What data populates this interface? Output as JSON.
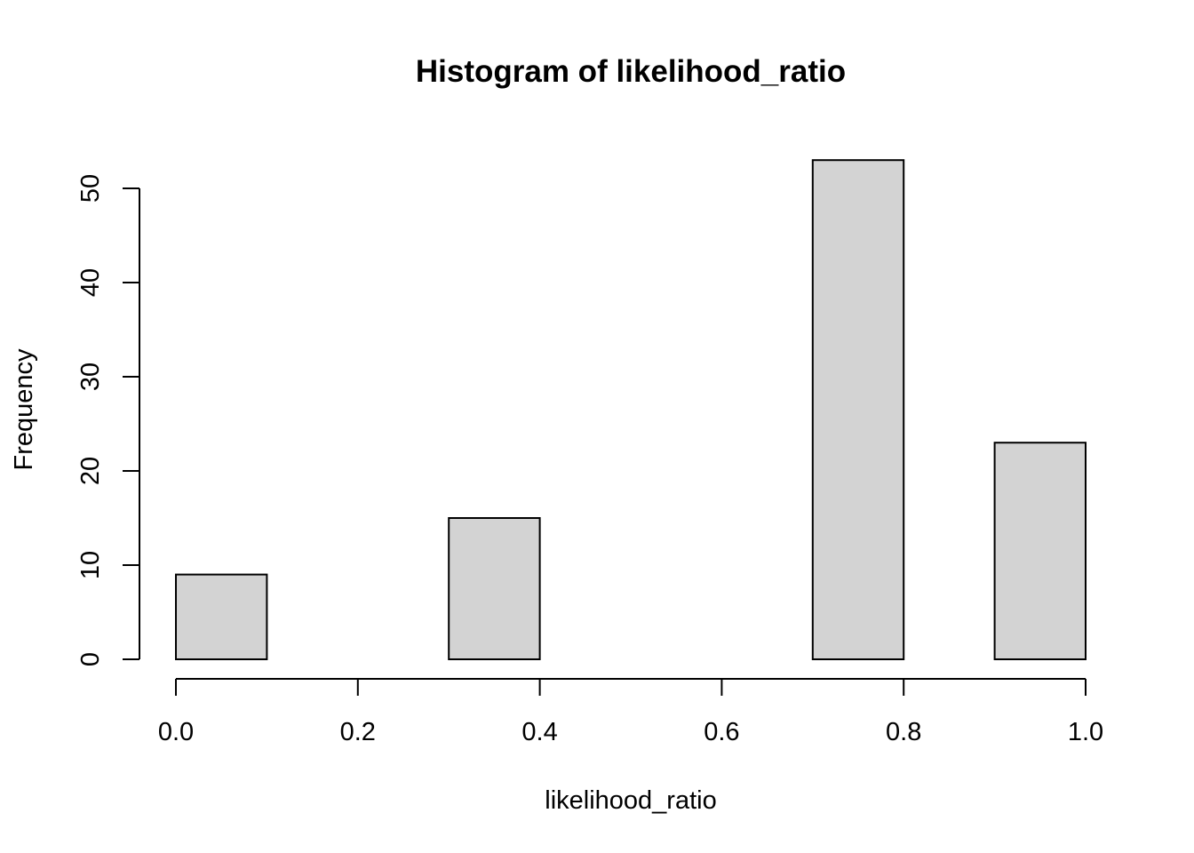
{
  "chart_data": {
    "type": "bar",
    "title": "Histogram of likelihood_ratio",
    "xlabel": "likelihood_ratio",
    "ylabel": "Frequency",
    "bins": [
      {
        "from": 0.0,
        "to": 0.1,
        "count": 9
      },
      {
        "from": 0.1,
        "to": 0.2,
        "count": 0
      },
      {
        "from": 0.2,
        "to": 0.3,
        "count": 0
      },
      {
        "from": 0.3,
        "to": 0.4,
        "count": 15
      },
      {
        "from": 0.4,
        "to": 0.5,
        "count": 0
      },
      {
        "from": 0.5,
        "to": 0.6,
        "count": 0
      },
      {
        "from": 0.6,
        "to": 0.7,
        "count": 0
      },
      {
        "from": 0.7,
        "to": 0.8,
        "count": 53
      },
      {
        "from": 0.8,
        "to": 0.9,
        "count": 0
      },
      {
        "from": 0.9,
        "to": 1.0,
        "count": 23
      }
    ],
    "xlim": [
      0.0,
      1.0
    ],
    "ylim": [
      0,
      53
    ],
    "x_ticks": [
      "0.0",
      "0.2",
      "0.4",
      "0.6",
      "0.8",
      "1.0"
    ],
    "y_ticks": [
      "0",
      "10",
      "20",
      "30",
      "40",
      "50"
    ],
    "grid": false,
    "legend": "none",
    "bar_fill": "#d3d3d3",
    "bar_stroke": "#000000"
  }
}
